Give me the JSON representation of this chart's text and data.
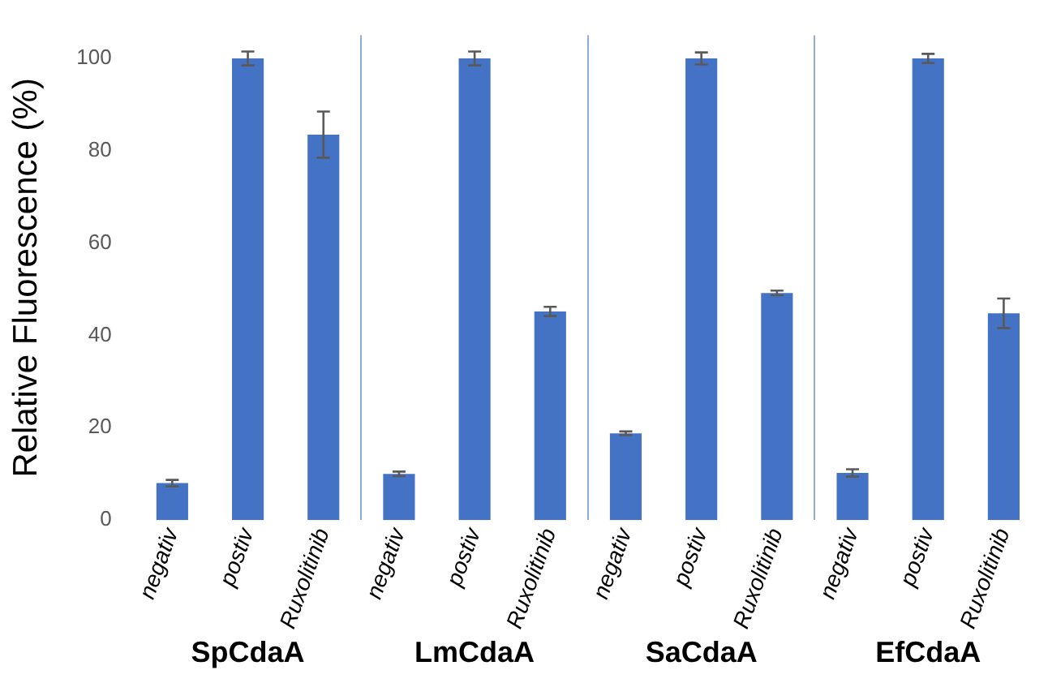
{
  "chart_data": {
    "type": "bar",
    "ylabel": "Relative Fluorescence (%)",
    "categories": [
      "negativ",
      "postiv",
      "Ruxolitinib",
      "negativ",
      "postiv",
      "Ruxolitinib",
      "negativ",
      "postiv",
      "Ruxolitinib",
      "negativ",
      "postiv",
      "Ruxolitinib"
    ],
    "values": [
      8,
      100,
      83.5,
      10,
      100,
      45.2,
      18.8,
      100,
      49.2,
      10.2,
      100,
      44.8
    ],
    "errors": [
      0.7,
      1.5,
      5,
      0.5,
      1.5,
      1,
      0.4,
      1.3,
      0.5,
      0.8,
      1,
      3.2
    ],
    "color": "#4472c4",
    "ylim": [
      0,
      105
    ],
    "yticks": [
      0,
      20,
      40,
      60,
      80,
      100
    ],
    "annotations": [
      "SpCdaA",
      "LmCdaA",
      "SaCdaA",
      "EfCdaA"
    ],
    "grid": "x",
    "legend": false
  }
}
